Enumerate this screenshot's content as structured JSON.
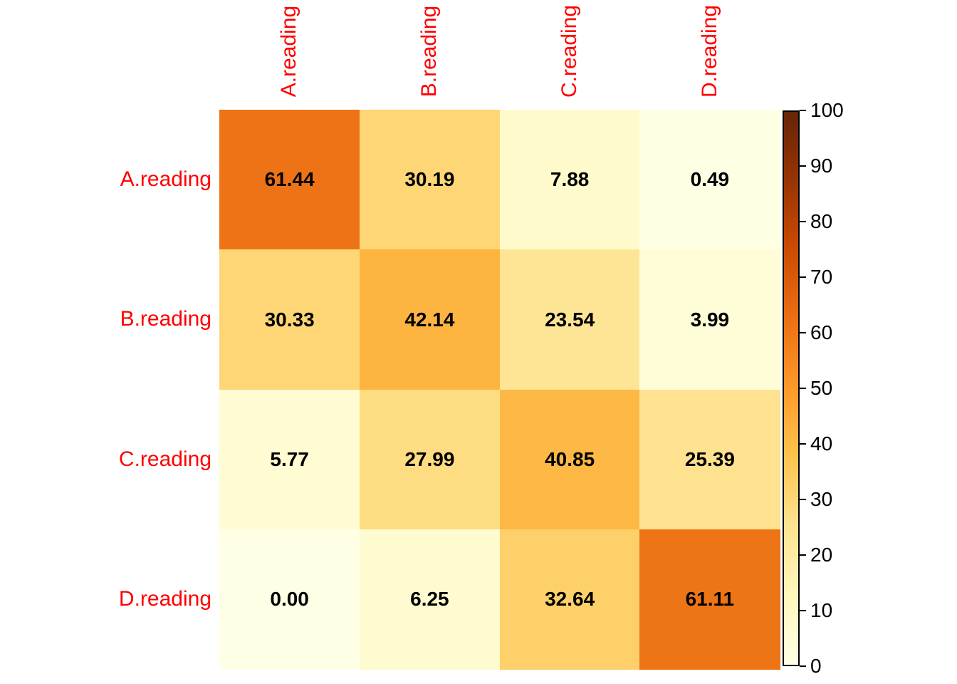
{
  "chart_data": {
    "type": "heatmap",
    "title": "",
    "rows": [
      "A.reading",
      "B.reading",
      "C.reading",
      "D.reading"
    ],
    "columns": [
      "A.reading",
      "B.reading",
      "C.reading",
      "D.reading"
    ],
    "values": [
      [
        61.44,
        30.19,
        7.88,
        0.49
      ],
      [
        30.33,
        42.14,
        23.54,
        3.99
      ],
      [
        5.77,
        27.99,
        40.85,
        25.39
      ],
      [
        0.0,
        6.25,
        32.64,
        61.11
      ]
    ],
    "value_decimals": 2,
    "colors": {
      "axis_label": "#FF0000",
      "cell_value": "#000000",
      "colorbar_border": "#000000",
      "tick": "#000000",
      "background": "#FFFFFF"
    },
    "colormap": {
      "name": "YlOrBr",
      "stops": [
        "#FFFFE5",
        "#FFF7BC",
        "#FEE391",
        "#FEC44F",
        "#FE9929",
        "#EC7014",
        "#CC4C02",
        "#993404",
        "#662506"
      ]
    },
    "colorbar": {
      "min": 0,
      "max": 100,
      "tick_labels": [
        "0",
        "10",
        "20",
        "30",
        "40",
        "50",
        "60",
        "70",
        "80",
        "90",
        "100"
      ],
      "position": "right"
    },
    "legend_position": "right",
    "grid_lines": false
  }
}
